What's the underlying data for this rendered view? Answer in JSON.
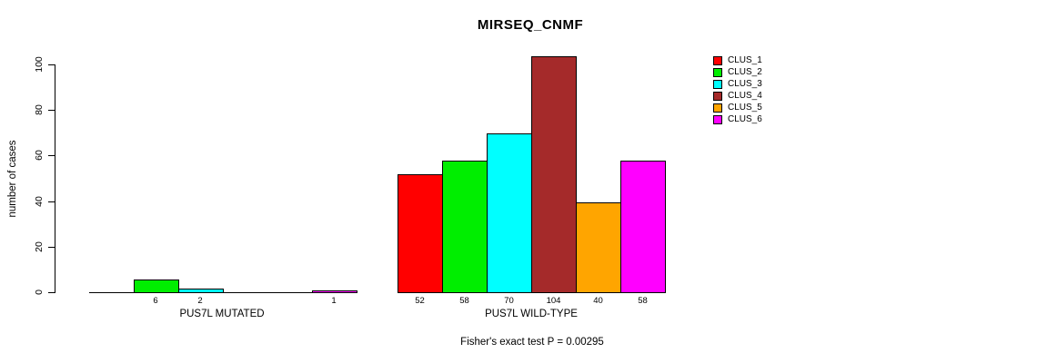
{
  "chart_data": {
    "type": "bar",
    "title": "MIRSEQ_CNMF",
    "ylabel": "number of cases",
    "xlabel": "",
    "ylim": [
      0,
      100
    ],
    "yticks": [
      0,
      20,
      40,
      60,
      80,
      100
    ],
    "grid": false,
    "legend_position": "right",
    "series": [
      {
        "name": "CLUS_1",
        "color": "#FF0000"
      },
      {
        "name": "CLUS_2",
        "color": "#00EE00"
      },
      {
        "name": "CLUS_3",
        "color": "#00FFFF"
      },
      {
        "name": "CLUS_4",
        "color": "#A52A2A"
      },
      {
        "name": "CLUS_5",
        "color": "#FFA500"
      },
      {
        "name": "CLUS_6",
        "color": "#FF00FF"
      }
    ],
    "groups": [
      {
        "label": "PUS7L MUTATED",
        "values": [
          0,
          6,
          2,
          0,
          0,
          1
        ]
      },
      {
        "label": "PUS7L WILD-TYPE",
        "values": [
          52,
          58,
          70,
          104,
          40,
          58
        ]
      }
    ],
    "annotation": "Fisher's exact test P = 0.00295"
  }
}
